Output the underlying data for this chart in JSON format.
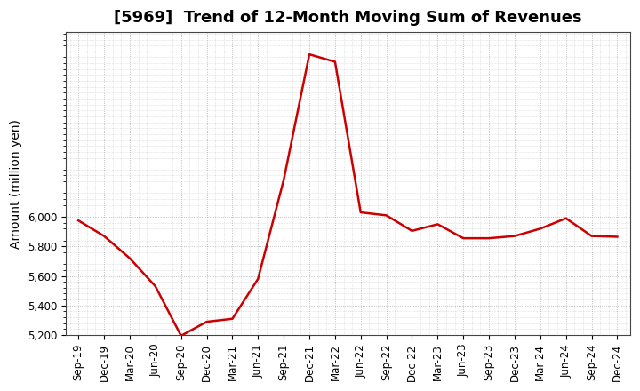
{
  "title": "[5969]  Trend of 12-Month Moving Sum of Revenues",
  "ylabel": "Amount (million yen)",
  "labels": [
    "Sep-19",
    "Dec-19",
    "Mar-20",
    "Jun-20",
    "Sep-20",
    "Dec-20",
    "Mar-21",
    "Jun-21",
    "Sep-21",
    "Dec-21",
    "Mar-22",
    "Jun-22",
    "Sep-22",
    "Dec-22",
    "Mar-23",
    "Jun-23",
    "Sep-23",
    "Dec-23",
    "Mar-24",
    "Jun-24",
    "Sep-24",
    "Dec-24"
  ],
  "values": [
    5975,
    5870,
    5720,
    5530,
    5195,
    5290,
    5310,
    5580,
    6250,
    7100,
    7050,
    6030,
    6010,
    5905,
    5950,
    5855,
    5855,
    5870,
    5920,
    5990,
    5870,
    5865
  ],
  "line_color": "#cc0000",
  "line_width": 1.8,
  "background_color": "#ffffff",
  "plot_bg_color": "#ffffff",
  "grid_color": "#999999",
  "ylim": [
    5200,
    7250
  ],
  "yticks": [
    5200,
    5400,
    5600,
    5800,
    6000
  ],
  "title_fontsize": 13,
  "axis_label_fontsize": 10,
  "tick_fontsize": 8.5
}
